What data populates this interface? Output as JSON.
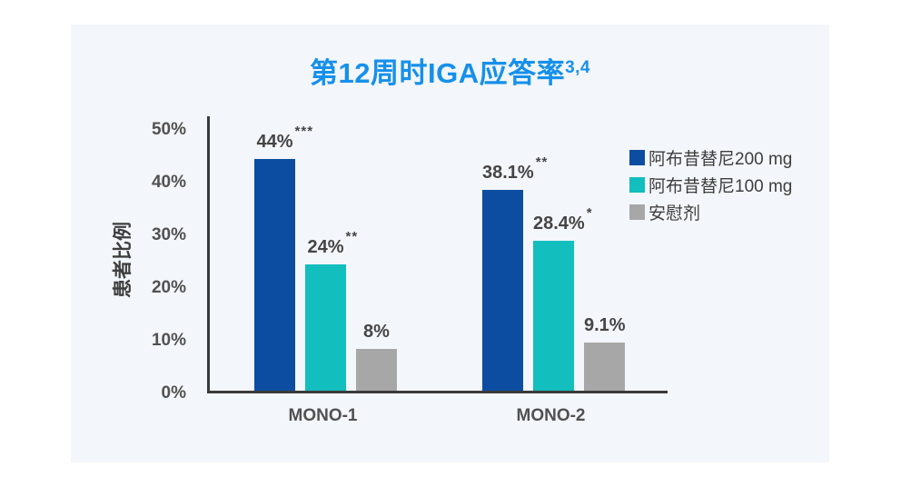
{
  "chart_data": {
    "type": "bar",
    "title": "第12周时IGA应答率",
    "title_superscript": "3,4",
    "title_color": "#1690EB",
    "ylabel": "患者比例",
    "categories": [
      "MONO-1",
      "MONO-2"
    ],
    "series": [
      {
        "name": "阿布昔替尼200 mg",
        "color": "#0C4DA2",
        "values": [
          44,
          38.1
        ],
        "labels": [
          "44%",
          "38.1%"
        ],
        "significance": [
          "***",
          "**"
        ]
      },
      {
        "name": "阿布昔替尼100 mg",
        "color": "#12BEBE",
        "values": [
          24,
          28.4
        ],
        "labels": [
          "24%",
          "28.4%"
        ],
        "significance": [
          "**",
          "*"
        ]
      },
      {
        "name": "安慰剂",
        "color": "#A7A7A7",
        "values": [
          8,
          9.1
        ],
        "labels": [
          "8%",
          "9.1%"
        ],
        "significance": [
          "",
          ""
        ]
      }
    ],
    "yticks": [
      {
        "label": "50%",
        "value": 50
      },
      {
        "label": "40%",
        "value": 40
      },
      {
        "label": "30%",
        "value": 30
      },
      {
        "label": "20%",
        "value": 20
      },
      {
        "label": "10%",
        "value": 10
      },
      {
        "label": "0%",
        "value": 0
      }
    ],
    "ylim": [
      0,
      50
    ],
    "grid": false,
    "legend_position": "right",
    "axis_color": "#3A3A3A",
    "card_background": "#F3F6FA"
  }
}
